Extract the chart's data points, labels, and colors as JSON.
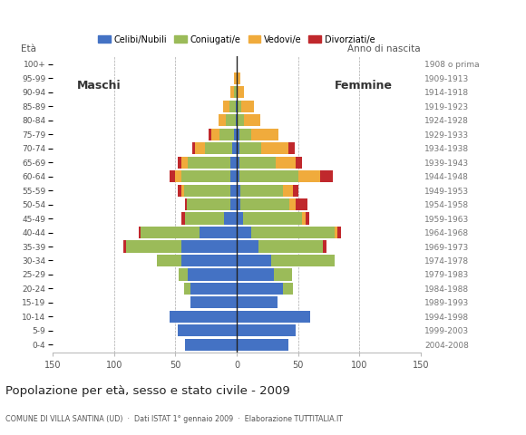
{
  "title": "Popolazione per età, sesso e stato civile - 2009",
  "subtitle": "COMUNE DI VILLA SANTINA (UD)  ·  Dati ISTAT 1° gennaio 2009  ·  Elaborazione TUTTITALIA.IT",
  "ylabel_left": "Età",
  "ylabel_right": "Anno di nascita",
  "label_maschi": "Maschi",
  "label_femmine": "Femmine",
  "legend_labels": [
    "Celibi/Nubili",
    "Coniugati/e",
    "Vedovi/e",
    "Divorziati/e"
  ],
  "bar_colors": [
    "#4472c4",
    "#9bbb59",
    "#f0ab3c",
    "#c0282c"
  ],
  "age_groups": [
    "0-4",
    "5-9",
    "10-14",
    "15-19",
    "20-24",
    "25-29",
    "30-34",
    "35-39",
    "40-44",
    "45-49",
    "50-54",
    "55-59",
    "60-64",
    "65-69",
    "70-74",
    "75-79",
    "80-84",
    "85-89",
    "90-94",
    "95-99",
    "100+"
  ],
  "birth_years": [
    "2004-2008",
    "1999-2003",
    "1994-1998",
    "1989-1993",
    "1984-1988",
    "1979-1983",
    "1974-1978",
    "1969-1973",
    "1964-1968",
    "1959-1963",
    "1954-1958",
    "1949-1953",
    "1944-1948",
    "1939-1943",
    "1934-1938",
    "1929-1933",
    "1924-1928",
    "1919-1923",
    "1914-1918",
    "1909-1913",
    "1908 o prima"
  ],
  "males_celibi": [
    42,
    48,
    55,
    38,
    38,
    40,
    45,
    45,
    30,
    10,
    5,
    5,
    5,
    5,
    4,
    2,
    1,
    1,
    0,
    0,
    0
  ],
  "males_coniugati": [
    0,
    0,
    0,
    0,
    5,
    7,
    20,
    45,
    48,
    32,
    36,
    38,
    40,
    35,
    22,
    12,
    8,
    5,
    2,
    0,
    0
  ],
  "males_vedovi": [
    0,
    0,
    0,
    0,
    0,
    0,
    0,
    0,
    0,
    0,
    0,
    2,
    5,
    5,
    8,
    7,
    6,
    5,
    3,
    2,
    0
  ],
  "males_divorziati": [
    0,
    0,
    0,
    0,
    0,
    0,
    0,
    2,
    2,
    3,
    1,
    3,
    5,
    3,
    2,
    2,
    0,
    0,
    0,
    0,
    0
  ],
  "females_nubili": [
    42,
    48,
    60,
    33,
    38,
    30,
    28,
    18,
    12,
    5,
    3,
    3,
    2,
    2,
    2,
    2,
    1,
    1,
    0,
    0,
    0
  ],
  "females_coniugate": [
    0,
    0,
    0,
    0,
    8,
    15,
    52,
    52,
    68,
    48,
    40,
    35,
    48,
    30,
    18,
    10,
    5,
    3,
    1,
    0,
    0
  ],
  "females_vedove": [
    0,
    0,
    0,
    0,
    0,
    0,
    0,
    0,
    2,
    3,
    5,
    8,
    18,
    16,
    22,
    22,
    13,
    10,
    5,
    3,
    0
  ],
  "females_divorziate": [
    0,
    0,
    0,
    0,
    0,
    0,
    0,
    3,
    3,
    3,
    10,
    4,
    10,
    5,
    5,
    0,
    0,
    0,
    0,
    0,
    0
  ],
  "xlim": 150,
  "xticks": [
    -150,
    -100,
    -50,
    0,
    50,
    100,
    150
  ],
  "grid_color": "#aaaaaa",
  "bar_height": 0.85
}
